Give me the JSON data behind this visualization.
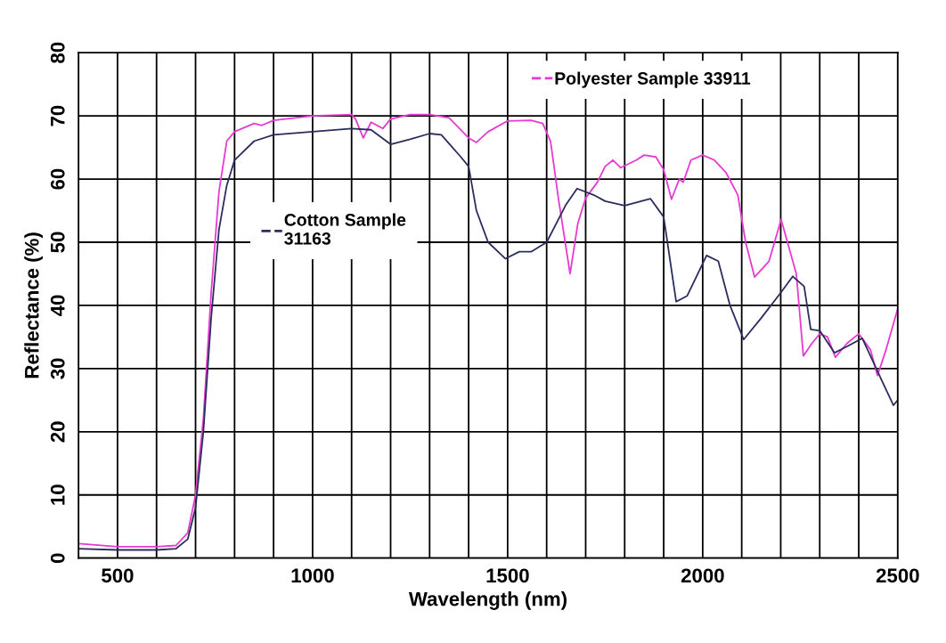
{
  "chart_data": {
    "type": "line",
    "xlabel": "Wavelength (nm)",
    "ylabel": "Reflectance (%)",
    "xlim": [
      400,
      2500
    ],
    "ylim": [
      0,
      80
    ],
    "xticks": [
      {
        "value": 400,
        "label": null
      },
      500,
      {
        "value": 600,
        "label": null
      },
      {
        "value": 700,
        "label": null
      },
      {
        "value": 800,
        "label": null
      },
      {
        "value": 900,
        "label": null
      },
      1000,
      {
        "value": 1100,
        "label": null
      },
      {
        "value": 1200,
        "label": null
      },
      {
        "value": 1300,
        "label": null
      },
      {
        "value": 1400,
        "label": null
      },
      1500,
      {
        "value": 1600,
        "label": null
      },
      {
        "value": 1700,
        "label": null
      },
      {
        "value": 1800,
        "label": null
      },
      {
        "value": 1900,
        "label": null
      },
      2000,
      {
        "value": 2100,
        "label": null
      },
      {
        "value": 2200,
        "label": null
      },
      {
        "value": 2300,
        "label": null
      },
      {
        "value": 2400,
        "label": null
      },
      2500
    ],
    "yticks": [
      0,
      10,
      20,
      30,
      40,
      50,
      60,
      70,
      80
    ],
    "grid": true,
    "legend": "top right",
    "marker": "none",
    "line_style": "solid",
    "series": [
      {
        "name": "Polyester Sample 33911",
        "color": "#e83ad0",
        "x": [
          400,
          500,
          600,
          650,
          680,
          700,
          720,
          740,
          760,
          780,
          800,
          850,
          870,
          900,
          1000,
          1100,
          1110,
          1130,
          1150,
          1180,
          1200,
          1250,
          1300,
          1350,
          1400,
          1420,
          1450,
          1500,
          1560,
          1590,
          1610,
          1630,
          1660,
          1680,
          1700,
          1730,
          1750,
          1770,
          1790,
          1830,
          1850,
          1880,
          1900,
          1920,
          1940,
          1950,
          1970,
          2000,
          2030,
          2060,
          2090,
          2110,
          2133,
          2170,
          2201,
          2240,
          2258,
          2280,
          2300,
          2320,
          2340,
          2370,
          2400,
          2430,
          2448,
          2470,
          2500
        ],
        "values": [
          2.3,
          1.8,
          1.8,
          2,
          4,
          10,
          22,
          42,
          58,
          66,
          67.5,
          68.8,
          68.5,
          69.3,
          70,
          70.2,
          69.5,
          66.5,
          69,
          68,
          69.5,
          70.2,
          70.2,
          69.7,
          66.5,
          65.8,
          67.5,
          69.2,
          69.3,
          68.8,
          66,
          57,
          45,
          53,
          57,
          59.5,
          62,
          63,
          61.8,
          63,
          63.8,
          63.5,
          61.5,
          56.8,
          60,
          59.5,
          63,
          63.8,
          63,
          61,
          57.5,
          50,
          44.5,
          47,
          53.6,
          45,
          32,
          34,
          35.5,
          35,
          31.8,
          34,
          35.5,
          33,
          28.9,
          33,
          39.5
        ]
      },
      {
        "name": "Cotton Sample 31163",
        "color": "#2b2d5e",
        "x": [
          400,
          500,
          600,
          650,
          680,
          700,
          720,
          740,
          760,
          780,
          800,
          850,
          900,
          1000,
          1100,
          1150,
          1200,
          1250,
          1300,
          1330,
          1380,
          1400,
          1420,
          1450,
          1494,
          1530,
          1560,
          1600,
          1650,
          1678,
          1720,
          1750,
          1800,
          1866,
          1900,
          1932,
          1960,
          2010,
          2040,
          2070,
          2105,
          2150,
          2200,
          2231,
          2260,
          2277,
          2300,
          2338,
          2370,
          2409,
          2430,
          2460,
          2489,
          2500
        ],
        "values": [
          1.5,
          1.3,
          1.3,
          1.5,
          3,
          8,
          20,
          38,
          52,
          59,
          63,
          66,
          67,
          67.5,
          68,
          67.8,
          65.5,
          66.3,
          67.2,
          67,
          63.5,
          62,
          55,
          50,
          47.4,
          48.5,
          48.5,
          50,
          56,
          58.5,
          57.5,
          56.5,
          55.8,
          56.9,
          54,
          40.6,
          41.5,
          47.9,
          47,
          40,
          34.6,
          38,
          42,
          44.6,
          43,
          36.2,
          36,
          32.5,
          33.5,
          34.8,
          32,
          28,
          24.2,
          25
        ]
      }
    ]
  }
}
